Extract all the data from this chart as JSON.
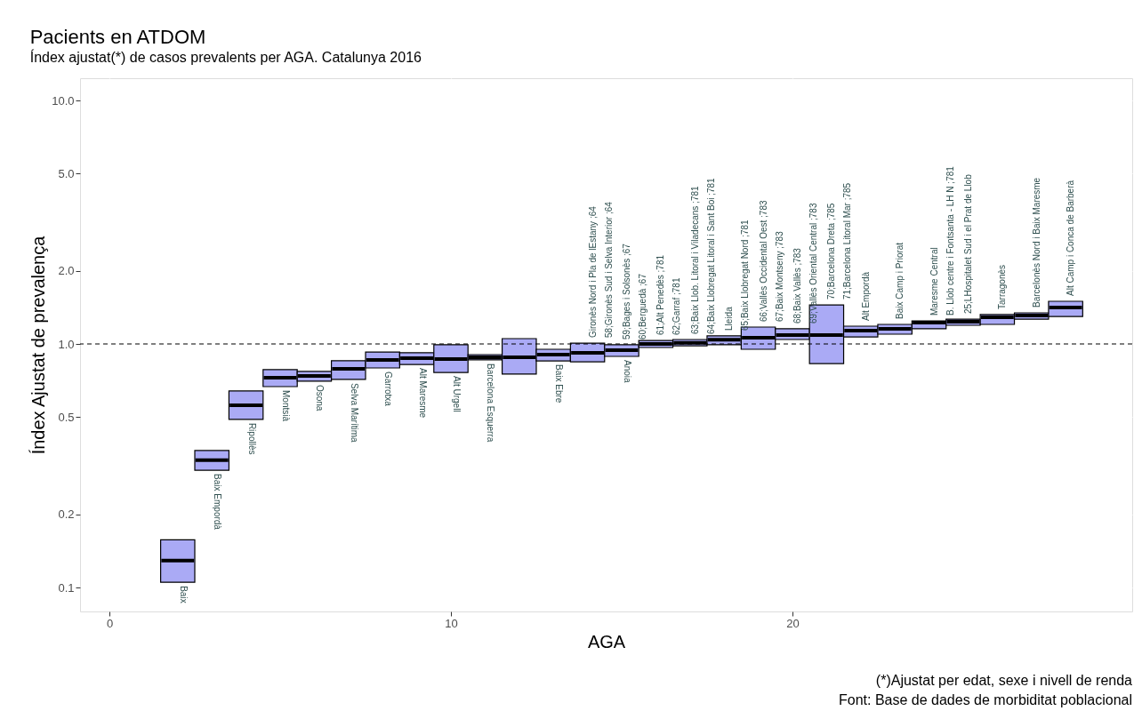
{
  "chart_data": {
    "type": "box",
    "title": "Pacients en ATDOM",
    "subtitle": "Índex ajustat(*) de casos prevalents per AGA. Catalunya 2016",
    "xlabel": "AGA",
    "ylabel": "Índex Ajustat de prevalença",
    "x": [
      2,
      3,
      4,
      5,
      6,
      7,
      8,
      9,
      10,
      11,
      12,
      13,
      14,
      15,
      16,
      17,
      18,
      19,
      20,
      21,
      22,
      23,
      24,
      25,
      26,
      27,
      28
    ],
    "series": [
      {
        "color": "#aaaaf5",
        "boxes": [
          {
            "low": 0.105,
            "q1": 0.105,
            "median": 0.129,
            "q3": 0.157,
            "high": 0.157
          },
          {
            "low": 0.303,
            "q1": 0.303,
            "median": 0.333,
            "q3": 0.365,
            "high": 0.365
          },
          {
            "low": 0.49,
            "q1": 0.49,
            "median": 0.56,
            "q3": 0.641,
            "high": 0.641
          },
          {
            "low": 0.668,
            "q1": 0.668,
            "median": 0.726,
            "q3": 0.784,
            "high": 0.784
          },
          {
            "low": 0.703,
            "q1": 0.703,
            "median": 0.739,
            "q3": 0.771,
            "high": 0.771
          },
          {
            "low": 0.715,
            "q1": 0.715,
            "median": 0.79,
            "q3": 0.853,
            "high": 0.853
          },
          {
            "low": 0.797,
            "q1": 0.797,
            "median": 0.86,
            "q3": 0.927,
            "high": 0.927
          },
          {
            "low": 0.824,
            "q1": 0.824,
            "median": 0.874,
            "q3": 0.92,
            "high": 0.92
          },
          {
            "low": 0.764,
            "q1": 0.764,
            "median": 0.867,
            "q3": 0.992,
            "high": 0.992
          },
          {
            "low": 0.86,
            "q1": 0.86,
            "median": 0.881,
            "q3": 0.904,
            "high": 0.904
          },
          {
            "low": 0.752,
            "q1": 0.752,
            "median": 0.881,
            "q3": 1.052,
            "high": 1.052
          },
          {
            "low": 0.852,
            "q1": 0.852,
            "median": 0.904,
            "q3": 0.951,
            "high": 0.951
          },
          {
            "low": 0.845,
            "q1": 0.845,
            "median": 0.92,
            "q3": 1.008,
            "high": 1.008
          },
          {
            "low": 0.889,
            "q1": 0.889,
            "median": 0.943,
            "q3": 0.992,
            "high": 0.992
          },
          {
            "low": 0.967,
            "q1": 0.967,
            "median": 1.0,
            "q3": 1.034,
            "high": 1.034
          },
          {
            "low": 0.983,
            "q1": 0.983,
            "median": 1.01,
            "q3": 1.043,
            "high": 1.043
          },
          {
            "low": 0.992,
            "q1": 0.992,
            "median": 1.04,
            "q3": 1.079,
            "high": 1.079
          },
          {
            "low": 0.951,
            "q1": 0.951,
            "median": 1.06,
            "q3": 1.173,
            "high": 1.173
          },
          {
            "low": 1.043,
            "q1": 1.043,
            "median": 1.088,
            "q3": 1.154,
            "high": 1.154
          },
          {
            "low": 0.831,
            "q1": 0.831,
            "median": 1.088,
            "q3": 1.447,
            "high": 1.447
          },
          {
            "low": 1.069,
            "q1": 1.069,
            "median": 1.134,
            "q3": 1.183,
            "high": 1.183
          },
          {
            "low": 1.097,
            "q1": 1.097,
            "median": 1.154,
            "q3": 1.203,
            "high": 1.203
          },
          {
            "low": 1.154,
            "q1": 1.154,
            "median": 1.223,
            "q3": 1.244,
            "high": 1.244
          },
          {
            "low": 1.193,
            "q1": 1.193,
            "median": 1.234,
            "q3": 1.265,
            "high": 1.265
          },
          {
            "low": 1.203,
            "q1": 1.203,
            "median": 1.287,
            "q3": 1.32,
            "high": 1.32
          },
          {
            "low": 1.265,
            "q1": 1.265,
            "median": 1.308,
            "q3": 1.342,
            "high": 1.342
          },
          {
            "low": 1.297,
            "q1": 1.297,
            "median": 1.411,
            "q3": 1.497,
            "high": 1.497
          }
        ]
      }
    ],
    "xlim": [
      -0.86,
      29.95
    ],
    "xticks": [
      0,
      10,
      20
    ],
    "ylim": [
      0.0797,
      12.34
    ],
    "yticks": [
      {
        "value": 0.1,
        "label": "0.1"
      },
      {
        "value": 0.2,
        "label": "0.2"
      },
      {
        "value": 0.5,
        "label": "0.5"
      },
      {
        "value": 1,
        "label": "1.0"
      },
      {
        "value": 2,
        "label": "2.0"
      },
      {
        "value": 5,
        "label": "5.0"
      },
      {
        "value": 10,
        "label": "10.0"
      }
    ],
    "log": true,
    "grid": true,
    "ref_lines": [
      {
        "axis": "y",
        "value": 1,
        "line_style": "dashed",
        "color": "#000000"
      }
    ],
    "annotations": [
      {
        "text": "Baix",
        "x": 2,
        "y": 0.105
      },
      {
        "text": "Baix Empordà",
        "x": 3,
        "y": 0.303
      },
      {
        "text": "Ripollès",
        "x": 4,
        "y": 0.49
      },
      {
        "text": "Montsià",
        "x": 5,
        "y": 0.668
      },
      {
        "text": "Osona",
        "x": 6,
        "y": 0.703
      },
      {
        "text": "Selva Marítima",
        "x": 7,
        "y": 0.715
      },
      {
        "text": "Garrotxa",
        "x": 8,
        "y": 0.797
      },
      {
        "text": "Alt Maresme",
        "x": 9,
        "y": 0.824
      },
      {
        "text": "Alt Urgell",
        "x": 10,
        "y": 0.764
      },
      {
        "text": "Barcelona Esquerra",
        "x": 11,
        "y": 0.86
      },
      {
        "text": "Baix Ebre",
        "x": 13,
        "y": 0.852
      },
      {
        "text": "Anoia",
        "x": 15,
        "y": 0.889
      },
      {
        "text": "Gironès Nord i Pla de lEstany ;64",
        "x": 14,
        "y": 1.008
      },
      {
        "text": "58;Gironès Sud i Selva Interior ;64",
        "x": 14,
        "y": 1.008
      },
      {
        "text": "59;Bages i Solsonès ;67",
        "x": 15,
        "y": 0.992
      },
      {
        "text": "60;Berguedà ;67",
        "x": 15,
        "y": 0.992
      },
      {
        "text": "61;Alt Penedès ;781",
        "x": 16,
        "y": 1.034
      },
      {
        "text": "62;Garraf ;781",
        "x": 16,
        "y": 1.034
      },
      {
        "text": "63;Baix Llob. Litoral i Viladecans ;781",
        "x": 17,
        "y": 1.043
      },
      {
        "text": "64;Baix Llobregat Litoral i Sant Boi ;781",
        "x": 17,
        "y": 1.043
      },
      {
        "text": "Lleida",
        "x": 18,
        "y": 1.079
      },
      {
        "text": "65;Baix Llobregat Nord ;781",
        "x": 18,
        "y": 1.079
      },
      {
        "text": "66;Vallès Occidental Oest ;783",
        "x": 19,
        "y": 1.173
      },
      {
        "text": "67;Baix Montseny ;783",
        "x": 19,
        "y": 1.173
      },
      {
        "text": "68;Baix Vallès ;783",
        "x": 20,
        "y": 1.154
      },
      {
        "text": "69;Vallès Oriental Central ;783",
        "x": 20,
        "y": 1.154
      },
      {
        "text": "70;Barcelona Dreta ;785",
        "x": 21,
        "y": 1.447
      },
      {
        "text": "71;Barcelona Litoral Mar ;785",
        "x": 21,
        "y": 1.447
      },
      {
        "text": "Alt Empordà",
        "x": 22,
        "y": 1.183
      },
      {
        "text": "Baix Camp i Priorat",
        "x": 23,
        "y": 1.203
      },
      {
        "text": "Maresme Central",
        "x": 24,
        "y": 1.244
      },
      {
        "text": "B. Llob centre i Fontsanta - LH N ;781",
        "x": 24,
        "y": 1.244
      },
      {
        "text": "25;LHospitalet Sud i el Prat de Llob",
        "x": 25,
        "y": 1.265
      },
      {
        "text": "Tarragonès",
        "x": 26,
        "y": 1.32
      },
      {
        "text": "Barcelonès Nord i Baix Maresme",
        "x": 27,
        "y": 1.342
      },
      {
        "text": "Alt Camp i Conca de Barberà",
        "x": 28,
        "y": 1.497
      },
      "(*)Ajustat per edat, sexe i nivell de renda",
      "Font: Base de dades de morbiditat poblacional"
    ]
  }
}
